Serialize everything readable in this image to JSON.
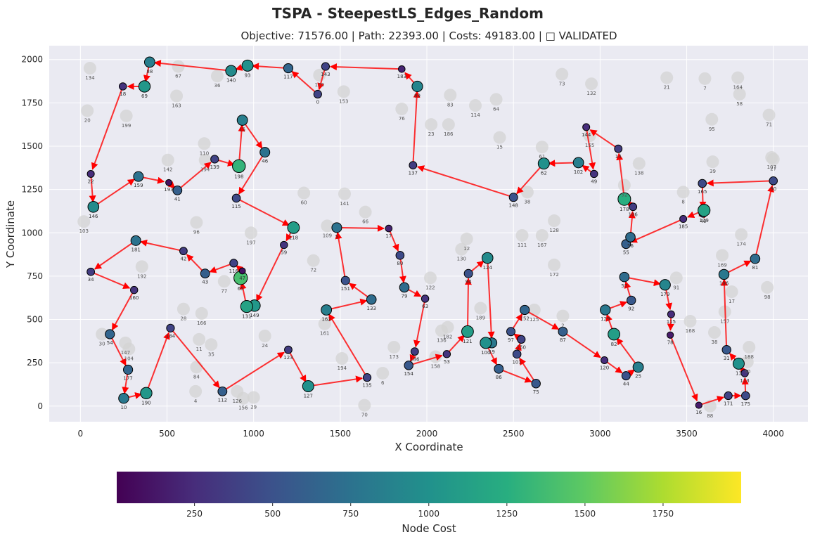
{
  "figure": {
    "title": "TSPA - SteepestLS_Edges_Random",
    "subtitle": "Objective: 71576.00 | Path: 22393.00 | Costs: 49183.00 | □ VALIDATED",
    "background": "#ffffff"
  },
  "chart_data": {
    "type": "scatter",
    "xlabel": "X Coordinate",
    "ylabel": "Y Coordinate",
    "xlim": [
      -180,
      4200
    ],
    "ylim": [
      -90,
      2080
    ],
    "xticks": [
      0,
      500,
      1000,
      1500,
      2000,
      2500,
      3000,
      3500,
      4000
    ],
    "yticks": [
      0,
      250,
      500,
      750,
      1000,
      1250,
      1500,
      1750,
      2000
    ],
    "grid": true,
    "plot_background": "#eaeaf2",
    "edge_color": "#ff0000",
    "colorbar": {
      "label": "Node Cost",
      "range": [
        1,
        2000
      ],
      "ticks": [
        250,
        500,
        750,
        1000,
        1250,
        1500,
        1750
      ],
      "colormap": "viridis"
    },
    "selected_nodes": [
      {
        "id": "118",
        "x": 1230,
        "y": 1030,
        "cost": 1100
      },
      {
        "id": "59",
        "x": 1175,
        "y": 930,
        "cost": 300
      },
      {
        "id": "149",
        "x": 1005,
        "y": 580,
        "cost": 1050
      },
      {
        "id": "131",
        "x": 960,
        "y": 575,
        "cost": 1150
      },
      {
        "id": "65",
        "x": 925,
        "y": 740,
        "cost": 1400
      },
      {
        "id": "47",
        "x": 935,
        "y": 780,
        "cost": 100
      },
      {
        "id": "116",
        "x": 885,
        "y": 825,
        "cost": 400
      },
      {
        "id": "43",
        "x": 720,
        "y": 765,
        "cost": 600
      },
      {
        "id": "42",
        "x": 595,
        "y": 895,
        "cost": 350
      },
      {
        "id": "181",
        "x": 320,
        "y": 955,
        "cost": 750
      },
      {
        "id": "34",
        "x": 60,
        "y": 775,
        "cost": 350
      },
      {
        "id": "160",
        "x": 310,
        "y": 670,
        "cost": 300
      },
      {
        "id": "54",
        "x": 170,
        "y": 415,
        "cost": 650
      },
      {
        "id": "177",
        "x": 275,
        "y": 210,
        "cost": 650
      },
      {
        "id": "10",
        "x": 250,
        "y": 45,
        "cost": 800
      },
      {
        "id": "190",
        "x": 380,
        "y": 75,
        "cost": 1050
      },
      {
        "id": "184",
        "x": 520,
        "y": 450,
        "cost": 400
      },
      {
        "id": "112",
        "x": 820,
        "y": 85,
        "cost": 600
      },
      {
        "id": "123",
        "x": 1200,
        "y": 325,
        "cost": 350
      },
      {
        "id": "127",
        "x": 1315,
        "y": 115,
        "cost": 1000
      },
      {
        "id": "135",
        "x": 1655,
        "y": 165,
        "cost": 400
      },
      {
        "id": "162",
        "x": 1420,
        "y": 555,
        "cost": 850
      },
      {
        "id": "133",
        "x": 1680,
        "y": 615,
        "cost": 700
      },
      {
        "id": "151",
        "x": 1530,
        "y": 725,
        "cost": 500
      },
      {
        "id": "5",
        "x": 1480,
        "y": 1030,
        "cost": 750
      },
      {
        "id": "17",
        "x": 1780,
        "y": 1025,
        "cost": 200
      },
      {
        "id": "80",
        "x": 1845,
        "y": 870,
        "cost": 450
      },
      {
        "id": "79",
        "x": 1870,
        "y": 685,
        "cost": 700
      },
      {
        "id": "63",
        "x": 1990,
        "y": 620,
        "cost": 300
      },
      {
        "id": "186",
        "x": 1930,
        "y": 315,
        "cost": 350
      },
      {
        "id": "154",
        "x": 1895,
        "y": 235,
        "cost": 550
      },
      {
        "id": "53",
        "x": 2115,
        "y": 300,
        "cost": 300
      },
      {
        "id": "121",
        "x": 2235,
        "y": 430,
        "cost": 1100
      },
      {
        "id": "94",
        "x": 2240,
        "y": 765,
        "cost": 500
      },
      {
        "id": "124",
        "x": 2350,
        "y": 855,
        "cost": 950
      },
      {
        "id": "19",
        "x": 2375,
        "y": 365,
        "cost": 800
      },
      {
        "id": "100",
        "x": 2340,
        "y": 365,
        "cost": 1000
      },
      {
        "id": "86",
        "x": 2415,
        "y": 215,
        "cost": 600
      },
      {
        "id": "75",
        "x": 2630,
        "y": 130,
        "cost": 550
      },
      {
        "id": "101",
        "x": 2520,
        "y": 300,
        "cost": 450
      },
      {
        "id": "150",
        "x": 2545,
        "y": 385,
        "cost": 400
      },
      {
        "id": "97",
        "x": 2485,
        "y": 430,
        "cost": 500
      },
      {
        "id": "152",
        "x": 2565,
        "y": 555,
        "cost": 650
      },
      {
        "id": "87",
        "x": 2785,
        "y": 430,
        "cost": 600
      },
      {
        "id": "120",
        "x": 3025,
        "y": 265,
        "cost": 250
      },
      {
        "id": "44",
        "x": 3150,
        "y": 175,
        "cost": 500
      },
      {
        "id": "25",
        "x": 3220,
        "y": 225,
        "cost": 850
      },
      {
        "id": "82",
        "x": 3080,
        "y": 415,
        "cost": 1100
      },
      {
        "id": "129",
        "x": 3030,
        "y": 555,
        "cost": 800
      },
      {
        "id": "92",
        "x": 3180,
        "y": 610,
        "cost": 550
      },
      {
        "id": "57",
        "x": 3140,
        "y": 745,
        "cost": 700
      },
      {
        "id": "179",
        "x": 3375,
        "y": 700,
        "cost": 900
      },
      {
        "id": "115",
        "x": 3410,
        "y": 530,
        "cost": 250
      },
      {
        "id": "78",
        "x": 3405,
        "y": 410,
        "cost": 150
      },
      {
        "id": "16",
        "x": 3570,
        "y": 5,
        "cost": 150
      },
      {
        "id": "171",
        "x": 3740,
        "y": 60,
        "cost": 400
      },
      {
        "id": "175",
        "x": 3840,
        "y": 60,
        "cost": 450
      },
      {
        "id": "113",
        "x": 3835,
        "y": 190,
        "cost": 300
      },
      {
        "id": "13",
        "x": 3800,
        "y": 245,
        "cost": 1000
      },
      {
        "id": "31",
        "x": 3730,
        "y": 325,
        "cost": 550
      },
      {
        "id": "196",
        "x": 3715,
        "y": 760,
        "cost": 800
      },
      {
        "id": "81",
        "x": 3895,
        "y": 850,
        "cost": 700
      },
      {
        "id": "90",
        "x": 4000,
        "y": 1300,
        "cost": 450
      },
      {
        "id": "165",
        "x": 3590,
        "y": 1285,
        "cost": 450
      },
      {
        "id": "40",
        "x": 3595,
        "y": 1115,
        "cost": 550
      },
      {
        "id": "119",
        "x": 3600,
        "y": 1130,
        "cost": 1150
      },
      {
        "id": "185",
        "x": 3480,
        "y": 1080,
        "cost": 250
      },
      {
        "id": "55",
        "x": 3150,
        "y": 935,
        "cost": 600
      },
      {
        "id": "56",
        "x": 3175,
        "y": 975,
        "cost": 700
      },
      {
        "id": "106",
        "x": 3190,
        "y": 1150,
        "cost": 350
      },
      {
        "id": "178",
        "x": 3140,
        "y": 1195,
        "cost": 1250
      },
      {
        "id": "14",
        "x": 3105,
        "y": 1485,
        "cost": 350
      },
      {
        "id": "144",
        "x": 2920,
        "y": 1610,
        "cost": 250
      },
      {
        "id": "49",
        "x": 2965,
        "y": 1340,
        "cost": 300
      },
      {
        "id": "102",
        "x": 2875,
        "y": 1405,
        "cost": 850
      },
      {
        "id": "62",
        "x": 2675,
        "y": 1400,
        "cost": 1000
      },
      {
        "id": "148",
        "x": 2500,
        "y": 1205,
        "cost": 500
      },
      {
        "id": "137",
        "x": 1920,
        "y": 1390,
        "cost": 350
      },
      {
        "id": "89",
        "x": 1945,
        "y": 1845,
        "cost": 900
      },
      {
        "id": "183",
        "x": 1855,
        "y": 1945,
        "cost": 200
      },
      {
        "id": "143",
        "x": 1415,
        "y": 1960,
        "cost": 400
      },
      {
        "id": "0",
        "x": 1370,
        "y": 1800,
        "cost": 400
      },
      {
        "id": "117",
        "x": 1200,
        "y": 1950,
        "cost": 650
      },
      {
        "id": "93",
        "x": 965,
        "y": 1965,
        "cost": 1000
      },
      {
        "id": "140",
        "x": 870,
        "y": 1935,
        "cost": 950
      },
      {
        "id": "88",
        "x": 400,
        "y": 1985,
        "cost": 850
      },
      {
        "id": "69",
        "x": 370,
        "y": 1845,
        "cost": 1050
      },
      {
        "id": "18",
        "x": 245,
        "y": 1845,
        "cost": 300
      },
      {
        "id": "22",
        "x": 60,
        "y": 1340,
        "cost": 250
      },
      {
        "id": "146",
        "x": 75,
        "y": 1150,
        "cost": 950
      },
      {
        "id": "159",
        "x": 335,
        "y": 1325,
        "cost": 750
      },
      {
        "id": "193",
        "x": 510,
        "y": 1290,
        "cost": 100
      },
      {
        "id": "41",
        "x": 560,
        "y": 1245,
        "cost": 600
      },
      {
        "id": "139",
        "x": 775,
        "y": 1425,
        "cost": 400
      },
      {
        "id": "198",
        "x": 915,
        "y": 1385,
        "cost": 1300
      },
      {
        "id": "15",
        "x": 935,
        "y": 1650,
        "cost": 850
      },
      {
        "id": "46",
        "x": 1065,
        "y": 1465,
        "cost": 750
      },
      {
        "id": "115b",
        "x": 900,
        "y": 1200,
        "cost": 450
      }
    ],
    "tour": [
      "118",
      "59",
      "149",
      "131",
      "65",
      "47",
      "116",
      "43",
      "42",
      "181",
      "34",
      "160",
      "54",
      "177",
      "10",
      "190",
      "184",
      "112",
      "123",
      "127",
      "135",
      "162",
      "133",
      "151",
      "5",
      "17",
      "80",
      "79",
      "63",
      "186",
      "154",
      "53",
      "121",
      "94",
      "124",
      "19",
      "100",
      "86",
      "75",
      "101",
      "150",
      "97",
      "152",
      "87",
      "120",
      "44",
      "25",
      "82",
      "129",
      "92",
      "57",
      "179",
      "115",
      "78",
      "16",
      "171",
      "175",
      "113",
      "13",
      "31",
      "196",
      "81",
      "90",
      "165",
      "40",
      "119",
      "185",
      "55",
      "56",
      "106",
      "178",
      "14",
      "144",
      "49",
      "102",
      "62",
      "148",
      "137",
      "89",
      "183",
      "143",
      "0",
      "117",
      "93",
      "140",
      "88",
      "69",
      "18",
      "22",
      "146",
      "159",
      "193",
      "41",
      "139",
      "198",
      "15",
      "46",
      "115b",
      "118"
    ],
    "unselected_nodes": [
      {
        "id": "134",
        "x": 55,
        "y": 1950
      },
      {
        "id": "67",
        "x": 565,
        "y": 1960
      },
      {
        "id": "36",
        "x": 790,
        "y": 1905
      },
      {
        "id": "163",
        "x": 555,
        "y": 1790
      },
      {
        "id": "20",
        "x": 40,
        "y": 1705
      },
      {
        "id": "199",
        "x": 265,
        "y": 1675
      },
      {
        "id": "170",
        "x": 1380,
        "y": 1910
      },
      {
        "id": "153",
        "x": 1520,
        "y": 1815
      },
      {
        "id": "110",
        "x": 715,
        "y": 1515
      },
      {
        "id": "142",
        "x": 505,
        "y": 1420
      },
      {
        "id": "194b",
        "x": 720,
        "y": 1420
      },
      {
        "id": "60",
        "x": 1290,
        "y": 1230
      },
      {
        "id": "141",
        "x": 1525,
        "y": 1225
      },
      {
        "id": "66",
        "x": 1645,
        "y": 1120
      },
      {
        "id": "103",
        "x": 20,
        "y": 1065
      },
      {
        "id": "96",
        "x": 670,
        "y": 1060
      },
      {
        "id": "197",
        "x": 985,
        "y": 1000
      },
      {
        "id": "109",
        "x": 1425,
        "y": 1040
      },
      {
        "id": "192",
        "x": 355,
        "y": 805
      },
      {
        "id": "72",
        "x": 1345,
        "y": 840
      },
      {
        "id": "77",
        "x": 830,
        "y": 720
      },
      {
        "id": "28",
        "x": 595,
        "y": 560
      },
      {
        "id": "166",
        "x": 700,
        "y": 535
      },
      {
        "id": "30",
        "x": 125,
        "y": 415
      },
      {
        "id": "147",
        "x": 260,
        "y": 365
      },
      {
        "id": "104",
        "x": 280,
        "y": 330
      },
      {
        "id": "11",
        "x": 685,
        "y": 385
      },
      {
        "id": "35",
        "x": 755,
        "y": 355
      },
      {
        "id": "24",
        "x": 1065,
        "y": 405
      },
      {
        "id": "84",
        "x": 670,
        "y": 225
      },
      {
        "id": "4",
        "x": 665,
        "y": 85
      },
      {
        "id": "126",
        "x": 905,
        "y": 85
      },
      {
        "id": "156",
        "x": 940,
        "y": 45
      },
      {
        "id": "29",
        "x": 1000,
        "y": 50
      },
      {
        "id": "161",
        "x": 1410,
        "y": 475
      },
      {
        "id": "194",
        "x": 1510,
        "y": 275
      },
      {
        "id": "6",
        "x": 1745,
        "y": 190
      },
      {
        "id": "70",
        "x": 1640,
        "y": 5
      },
      {
        "id": "173",
        "x": 1810,
        "y": 340
      },
      {
        "id": "158",
        "x": 2050,
        "y": 285
      },
      {
        "id": "136",
        "x": 2085,
        "y": 435
      },
      {
        "id": "182",
        "x": 2120,
        "y": 455
      },
      {
        "id": "122",
        "x": 2020,
        "y": 740
      },
      {
        "id": "130",
        "x": 2200,
        "y": 905
      },
      {
        "id": "12",
        "x": 2230,
        "y": 965
      },
      {
        "id": "189",
        "x": 2310,
        "y": 565
      },
      {
        "id": "111",
        "x": 2550,
        "y": 985
      },
      {
        "id": "167",
        "x": 2665,
        "y": 985
      },
      {
        "id": "128",
        "x": 2735,
        "y": 1070
      },
      {
        "id": "172",
        "x": 2735,
        "y": 815
      },
      {
        "id": "125",
        "x": 2620,
        "y": 555
      },
      {
        "id": "2",
        "x": 2785,
        "y": 520
      },
      {
        "id": "76",
        "x": 1855,
        "y": 1715
      },
      {
        "id": "23",
        "x": 2025,
        "y": 1625
      },
      {
        "id": "186b",
        "x": 2125,
        "y": 1625
      },
      {
        "id": "83",
        "x": 2135,
        "y": 1795
      },
      {
        "id": "114",
        "x": 2280,
        "y": 1735
      },
      {
        "id": "64",
        "x": 2400,
        "y": 1770
      },
      {
        "id": "15b",
        "x": 2420,
        "y": 1550
      },
      {
        "id": "61",
        "x": 2665,
        "y": 1495
      },
      {
        "id": "38",
        "x": 2580,
        "y": 1235
      },
      {
        "id": "73",
        "x": 2780,
        "y": 1915
      },
      {
        "id": "132",
        "x": 2950,
        "y": 1860
      },
      {
        "id": "155",
        "x": 2940,
        "y": 1560
      },
      {
        "id": "138",
        "x": 3225,
        "y": 1400
      },
      {
        "id": "52",
        "x": 3140,
        "y": 1275
      },
      {
        "id": "21",
        "x": 3385,
        "y": 1895
      },
      {
        "id": "7",
        "x": 3605,
        "y": 1890
      },
      {
        "id": "164",
        "x": 3795,
        "y": 1895
      },
      {
        "id": "58",
        "x": 3805,
        "y": 1800
      },
      {
        "id": "95",
        "x": 3645,
        "y": 1655
      },
      {
        "id": "71",
        "x": 3975,
        "y": 1680
      },
      {
        "id": "107",
        "x": 3990,
        "y": 1435
      },
      {
        "id": "27",
        "x": 4000,
        "y": 1425
      },
      {
        "id": "39",
        "x": 3650,
        "y": 1410
      },
      {
        "id": "8",
        "x": 3480,
        "y": 1235
      },
      {
        "id": "174",
        "x": 3815,
        "y": 990
      },
      {
        "id": "169",
        "x": 3705,
        "y": 870
      },
      {
        "id": "91",
        "x": 3440,
        "y": 740
      },
      {
        "id": "17b",
        "x": 3760,
        "y": 660
      },
      {
        "id": "98",
        "x": 3965,
        "y": 685
      },
      {
        "id": "157",
        "x": 3720,
        "y": 545
      },
      {
        "id": "168",
        "x": 3520,
        "y": 490
      },
      {
        "id": "38b",
        "x": 3660,
        "y": 425
      },
      {
        "id": "188",
        "x": 3860,
        "y": 340
      },
      {
        "id": "50",
        "x": 3850,
        "y": 255
      },
      {
        "id": "88b",
        "x": 3635,
        "y": 0
      }
    ]
  }
}
